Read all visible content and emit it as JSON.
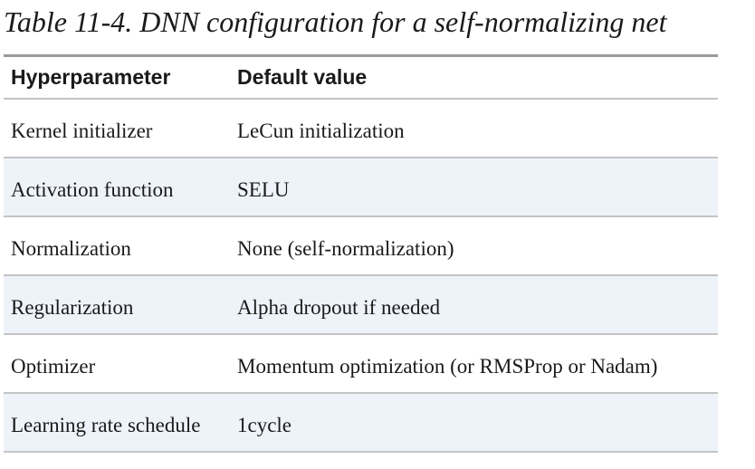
{
  "caption": "Table 11-4. DNN configuration for a self-normalizing net",
  "table": {
    "headers": [
      "Hyperparameter",
      "Default value"
    ],
    "rows": [
      [
        "Kernel initializer",
        "LeCun initialization"
      ],
      [
        "Activation function",
        "SELU"
      ],
      [
        "Normalization",
        "None (self-normalization)"
      ],
      [
        "Regularization",
        "Alpha dropout if needed"
      ],
      [
        "Optimizer",
        "Momentum optimization (or RMSProp or Nadam)"
      ],
      [
        "Learning rate schedule",
        "1cycle"
      ]
    ]
  },
  "colors": {
    "alt_row_background": "#eef3fa",
    "rule": "#c4c4c4",
    "top_rule": "#9a9a9a"
  }
}
